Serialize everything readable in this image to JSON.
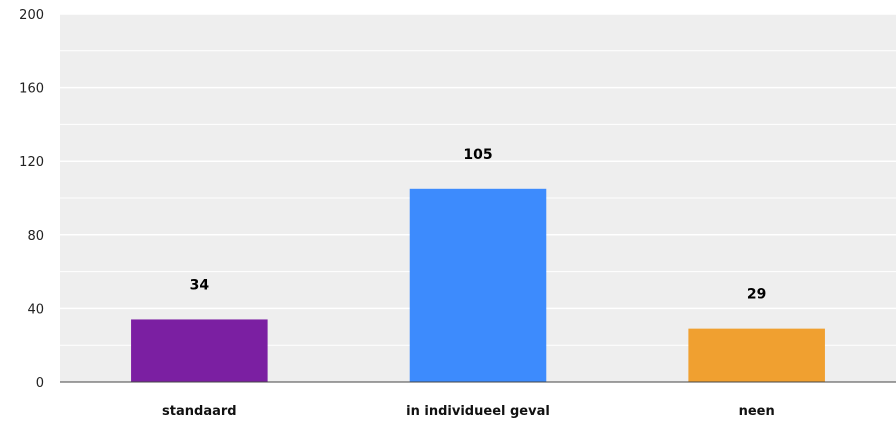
{
  "chart_data": {
    "type": "bar",
    "categories": [
      "standaard",
      "in individueel geval",
      "neen"
    ],
    "values": [
      34,
      105,
      29
    ],
    "data_labels": [
      "34",
      "105",
      "29"
    ],
    "colors": [
      "#7b1fa2",
      "#3d8bfd",
      "#f0a030"
    ],
    "title": "",
    "xlabel": "",
    "ylabel": "",
    "ylim": [
      0,
      200
    ],
    "yticks": [
      0,
      40,
      80,
      120,
      160,
      200
    ],
    "ytick_labels": [
      "0",
      "40",
      "80",
      "120",
      "160",
      "200"
    ],
    "grid": true,
    "minor_grid": true,
    "legend": "none",
    "background": "#eeeeee"
  }
}
